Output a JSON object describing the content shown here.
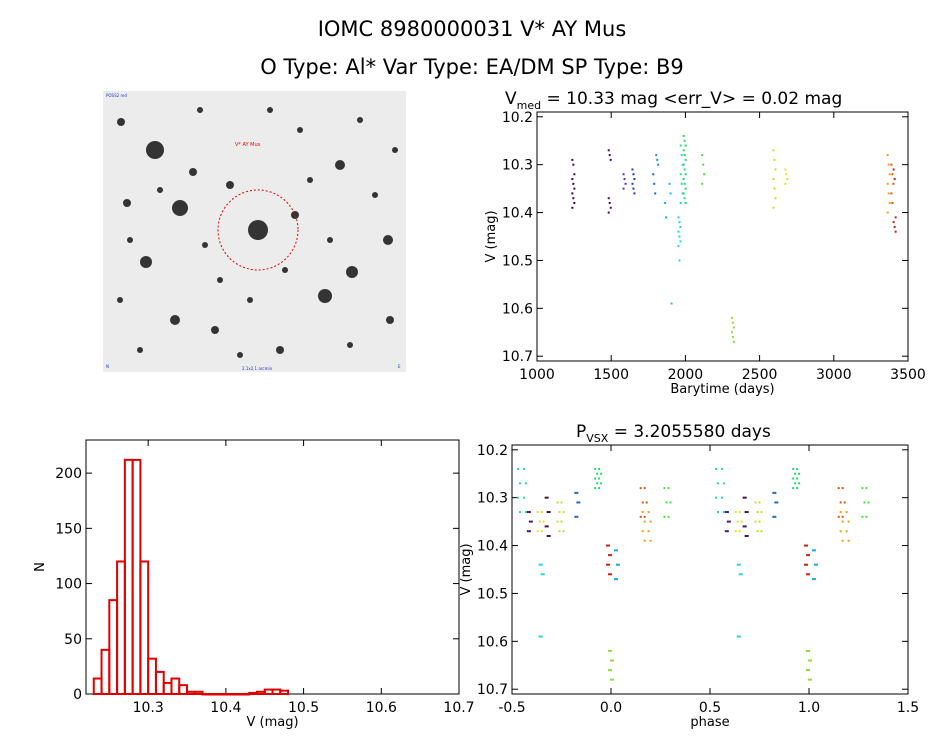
{
  "header": {
    "title_line1": "IOMC 8980000031    V* AY Mus",
    "title_line2": "O Type: Al*   Var Type: EA/DM   SP Type: B9"
  },
  "finder": {
    "label_target": "V* AY Mus",
    "label_top_left": "POSS2 red",
    "label_bottom": "2.1x2.1 arcmin",
    "label_bottom_left": "N",
    "label_bottom_right": "E"
  },
  "chart_data": [
    {
      "type": "scatter",
      "title": "V",
      "title_sub": "med",
      "title_rest": " = 10.33 mag <err_V> = 0.02 mag",
      "xlabel": "Barytime (days)",
      "ylabel": "V (mag)",
      "xlim": [
        1000,
        3500
      ],
      "ylim": [
        10.71,
        10.19
      ],
      "xticks": [
        "1000",
        "1500",
        "2000",
        "2500",
        "3000",
        "3500"
      ],
      "yticks": [
        "10.2",
        "10.3",
        "10.4",
        "10.5",
        "10.6",
        "10.7"
      ],
      "series": [
        {
          "name": "s1",
          "color": "#3a0a40",
          "x": 1245,
          "values": [
            10.29,
            10.3,
            10.32,
            10.33,
            10.34,
            10.35,
            10.36,
            10.37,
            10.38,
            10.39
          ]
        },
        {
          "name": "s2",
          "color": "#4b0a6e",
          "x": 1490,
          "values": [
            10.27,
            10.28,
            10.29,
            10.37,
            10.38,
            10.39,
            10.4
          ]
        },
        {
          "name": "s3",
          "color": "#5a2fb0",
          "x": 1590,
          "values": [
            10.32,
            10.33,
            10.34,
            10.35
          ]
        },
        {
          "name": "s4",
          "color": "#2035c8",
          "x": 1650,
          "values": [
            10.31,
            10.32,
            10.33,
            10.34,
            10.35,
            10.36
          ]
        },
        {
          "name": "s5",
          "color": "#1565d8",
          "x": 1790,
          "values": [
            10.32,
            10.34,
            10.36
          ]
        },
        {
          "name": "s6",
          "color": "#1596d8",
          "x": 1810,
          "values": [
            10.28,
            10.29,
            10.3
          ]
        },
        {
          "name": "s7",
          "color": "#17a8e0",
          "x": 1870,
          "values": [
            10.38,
            10.41
          ]
        },
        {
          "name": "s8",
          "color": "#15c0e8",
          "x": 1900,
          "values": [
            10.34,
            10.36,
            10.59
          ]
        },
        {
          "name": "s9",
          "color": "#18d8e0",
          "x": 1960,
          "values": [
            10.41,
            10.42,
            10.43,
            10.44,
            10.45,
            10.46,
            10.47,
            10.5
          ]
        },
        {
          "name": "s10",
          "color": "#18e0a8",
          "x": 1975,
          "values": [
            10.26,
            10.28,
            10.3,
            10.32,
            10.34,
            10.36,
            10.38
          ]
        },
        {
          "name": "s11",
          "color": "#1ee060",
          "x": 1995,
          "values": [
            10.24,
            10.25,
            10.26,
            10.27,
            10.28,
            10.29,
            10.3,
            10.31,
            10.32,
            10.33,
            10.34,
            10.35,
            10.36,
            10.37,
            10.38
          ]
        },
        {
          "name": "s12",
          "color": "#50e040",
          "x": 2120,
          "values": [
            10.28,
            10.3,
            10.32,
            10.34
          ]
        },
        {
          "name": "s13",
          "color": "#8ee030",
          "x": 2320,
          "values": [
            10.62,
            10.63,
            10.64,
            10.65,
            10.66,
            10.67
          ]
        },
        {
          "name": "s14",
          "color": "#c8e020",
          "x": 2600,
          "values": [
            10.27,
            10.29,
            10.31,
            10.33,
            10.35,
            10.37,
            10.39
          ]
        },
        {
          "name": "s15",
          "color": "#e8e020",
          "x": 2680,
          "values": [
            10.31,
            10.32,
            10.33,
            10.34
          ]
        },
        {
          "name": "s16",
          "color": "#f0a010",
          "x": 3370,
          "values": [
            10.28,
            10.3,
            10.32,
            10.34,
            10.36,
            10.38,
            10.4
          ]
        },
        {
          "name": "s17",
          "color": "#e85010",
          "x": 3395,
          "values": [
            10.3,
            10.32,
            10.34,
            10.36,
            10.38
          ]
        },
        {
          "name": "s18",
          "color": "#c82010",
          "x": 3410,
          "values": [
            10.31,
            10.33,
            10.41,
            10.42,
            10.43,
            10.44
          ]
        }
      ]
    },
    {
      "type": "bar",
      "xlabel": "V (mag)",
      "ylabel": "N",
      "xlim": [
        10.22,
        10.7
      ],
      "ylim": [
        0,
        230
      ],
      "xticks": [
        "10.3",
        "10.4",
        "10.5",
        "10.6",
        "10.7"
      ],
      "yticks": [
        "0",
        "50",
        "100",
        "150",
        "200"
      ],
      "bin_width": 0.01,
      "bin_start": 10.23,
      "color": "#e00000",
      "values": [
        14,
        40,
        85,
        120,
        212,
        212,
        120,
        32,
        20,
        10,
        14,
        8,
        2,
        2,
        0,
        0,
        0,
        0,
        0,
        0,
        1,
        2,
        4,
        4,
        3
      ]
    },
    {
      "type": "scatter",
      "title": "P",
      "title_sub": "VSX",
      "title_rest": " = 3.2055580 days",
      "xlabel": "phase",
      "ylabel": "V (mag)",
      "xlim": [
        -0.5,
        1.5
      ],
      "ylim": [
        10.71,
        10.19
      ],
      "xticks": [
        "-0.5",
        "0.0",
        "0.5",
        "1.0",
        "1.5"
      ],
      "yticks": [
        "10.2",
        "10.3",
        "10.4",
        "10.5",
        "10.6",
        "10.7"
      ],
      "period_offset": 1.0,
      "series": [
        {
          "name": "p1",
          "color": "#3a0a40",
          "phases": [
            -0.33,
            -0.32
          ],
          "values": [
            10.3,
            10.33,
            10.36,
            10.38
          ]
        },
        {
          "name": "p2",
          "color": "#4b0a6e",
          "phases": [
            -0.42,
            -0.41
          ],
          "values": [
            10.33,
            10.35,
            10.37
          ]
        },
        {
          "name": "p3",
          "color": "#1565d8",
          "phases": [
            -0.18,
            -0.17
          ],
          "values": [
            10.29,
            10.31,
            10.34
          ]
        },
        {
          "name": "p4",
          "color": "#18d8e0",
          "phases": [
            -0.36,
            -0.35
          ],
          "values": [
            10.44,
            10.46,
            10.59
          ]
        },
        {
          "name": "p5",
          "color": "#18e0a8",
          "phases": [
            -0.47,
            -0.44
          ],
          "values": [
            10.24,
            10.27,
            10.3,
            10.33
          ]
        },
        {
          "name": "p6",
          "color": "#1ee060",
          "phases": [
            -0.08,
            -0.06
          ],
          "values": [
            10.24,
            10.25,
            10.26,
            10.27,
            10.28
          ]
        },
        {
          "name": "p7",
          "color": "#8ee030",
          "phases": [
            -0.01,
            0.0
          ],
          "values": [
            10.62,
            10.64,
            10.66,
            10.68
          ]
        },
        {
          "name": "p8",
          "color": "#c8e020",
          "phases": [
            -0.27,
            -0.25
          ],
          "values": [
            10.31,
            10.33,
            10.35,
            10.37
          ]
        },
        {
          "name": "p9",
          "color": "#e8e020",
          "phases": [
            -0.37,
            -0.35
          ],
          "values": [
            10.33,
            10.35,
            10.37
          ]
        },
        {
          "name": "p10",
          "color": "#f0a010",
          "phases": [
            0.16,
            0.19
          ],
          "values": [
            10.33,
            10.35,
            10.37,
            10.39
          ]
        },
        {
          "name": "p11",
          "color": "#e85010",
          "phases": [
            0.15,
            0.17
          ],
          "values": [
            10.28,
            10.31,
            10.34
          ]
        },
        {
          "name": "p12",
          "color": "#c82010",
          "phases": [
            -0.02,
            -0.01
          ],
          "values": [
            10.4,
            10.42,
            10.44,
            10.46
          ]
        },
        {
          "name": "p13",
          "color": "#17a8e0",
          "phases": [
            0.02,
            0.03
          ],
          "values": [
            10.41,
            10.44,
            10.47
          ]
        },
        {
          "name": "p14",
          "color": "#50e040",
          "phases": [
            0.27,
            0.29
          ],
          "values": [
            10.28,
            10.31,
            10.34
          ]
        }
      ]
    }
  ]
}
